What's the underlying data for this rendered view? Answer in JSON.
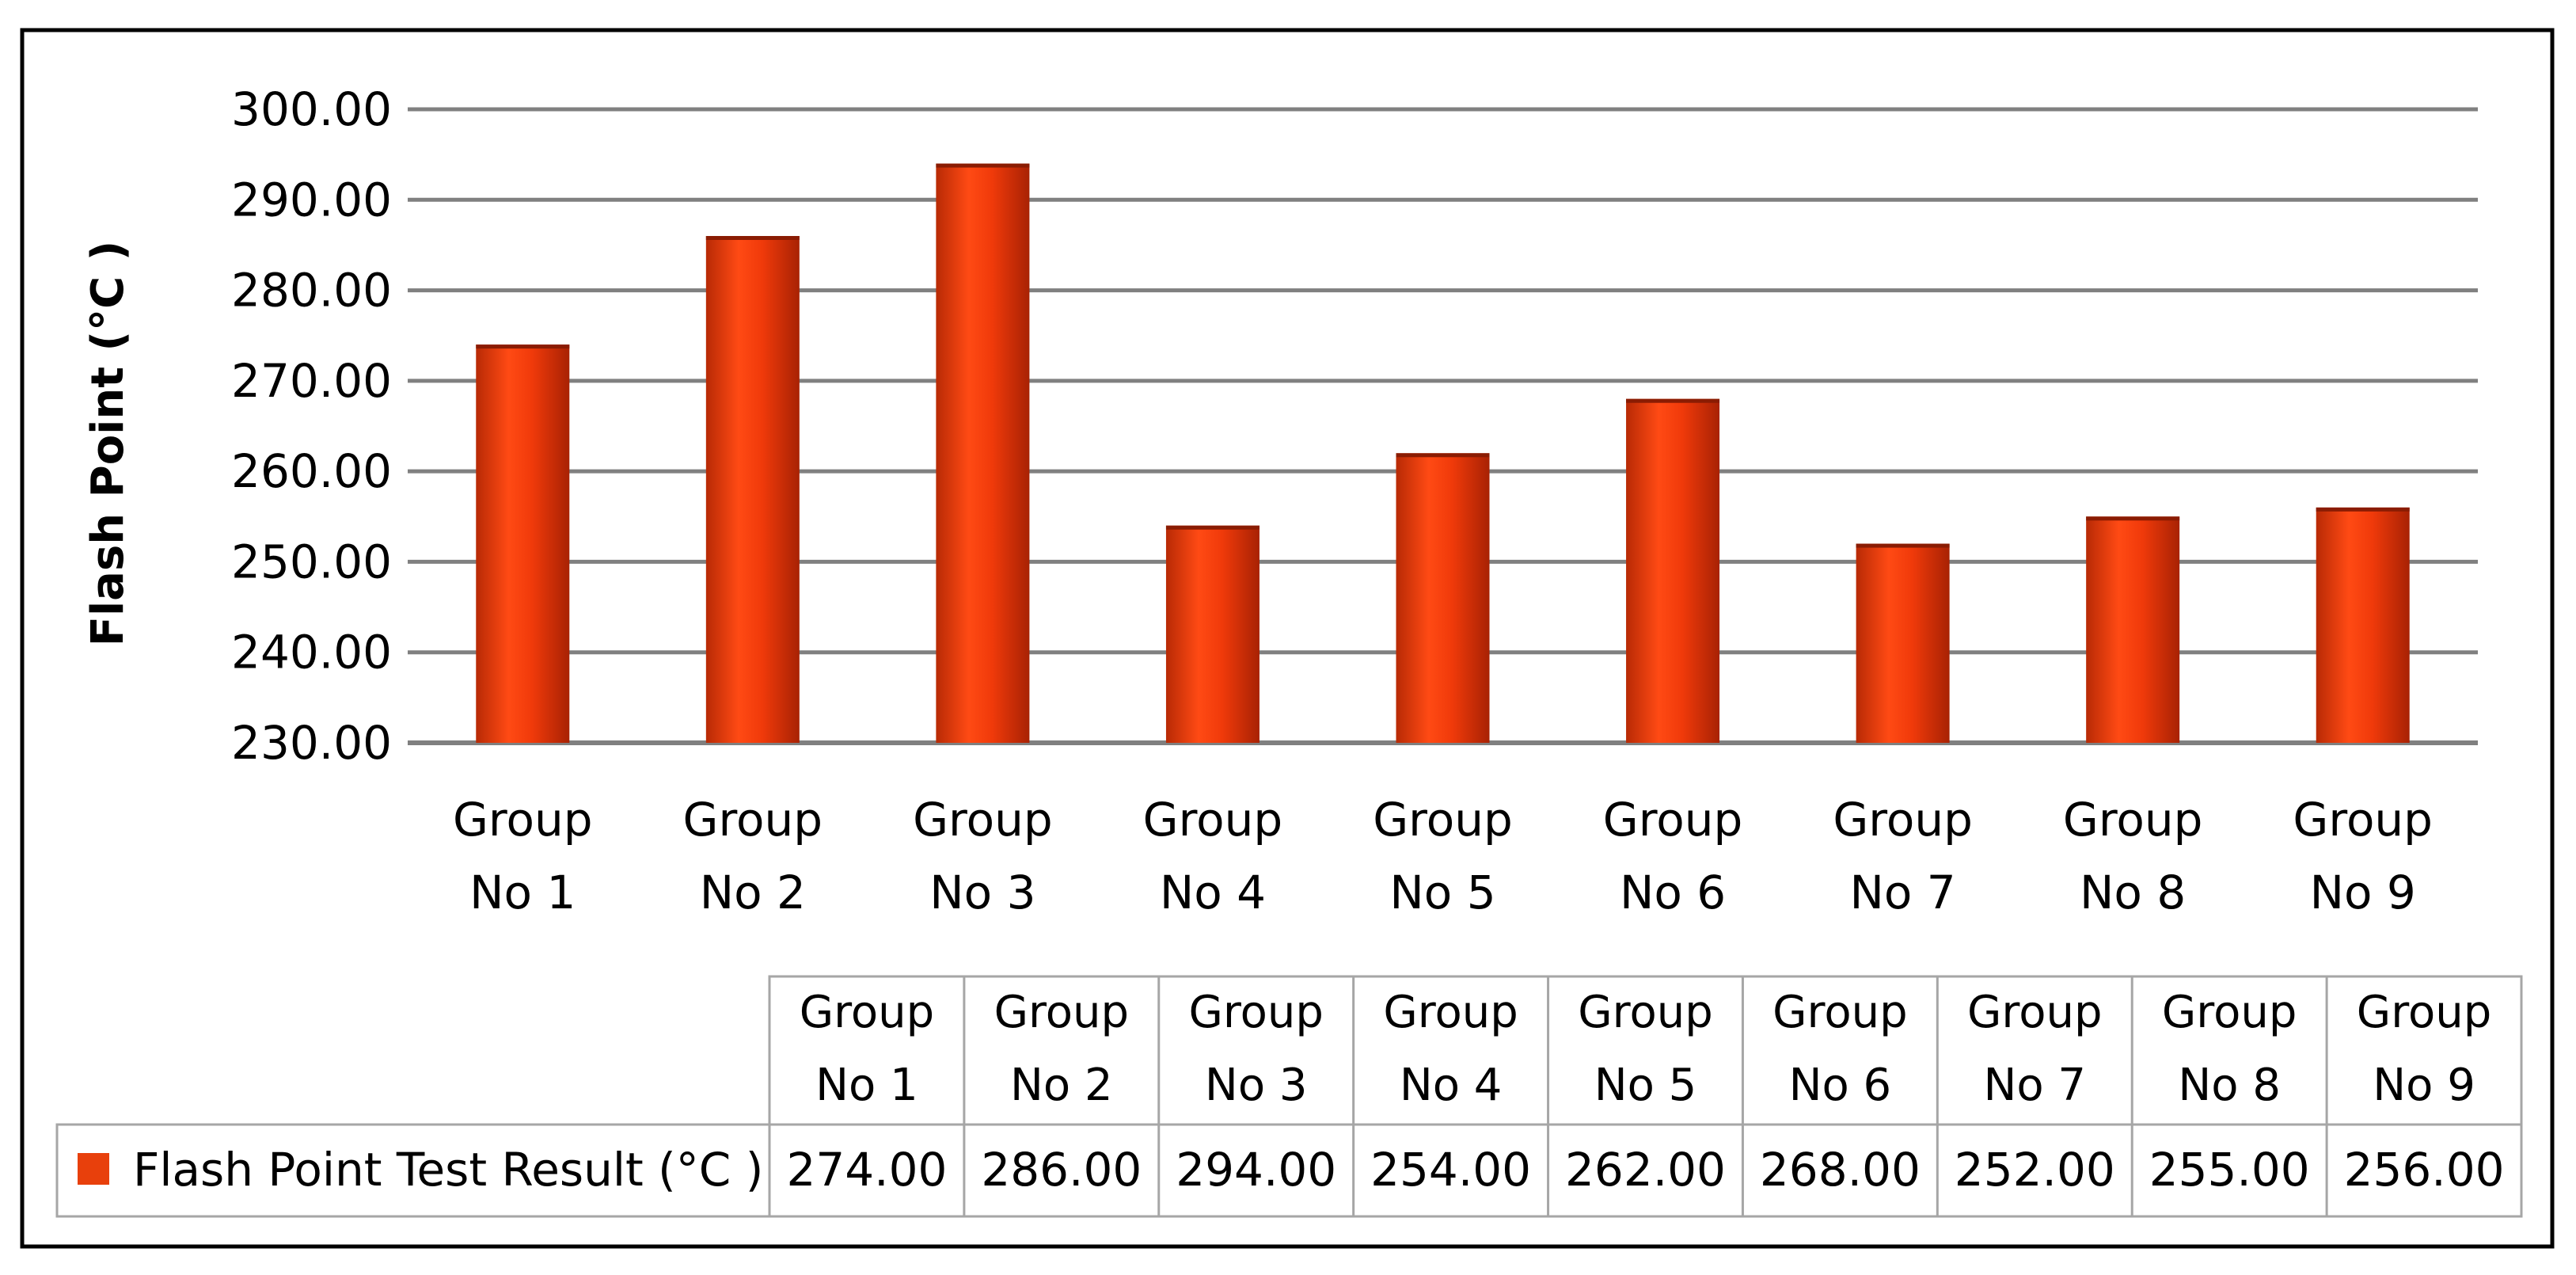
{
  "chart_data": {
    "type": "bar",
    "title": "",
    "xlabel": "",
    "ylabel": "Flash Point (°C )",
    "ylim": [
      230,
      300
    ],
    "y_ticks": [
      "230.00",
      "240.00",
      "250.00",
      "260.00",
      "270.00",
      "280.00",
      "290.00",
      "300.00"
    ],
    "grid": true,
    "categories": [
      [
        "Group",
        "No 1"
      ],
      [
        "Group",
        "No 2"
      ],
      [
        "Group",
        "No 3"
      ],
      [
        "Group",
        "No 4"
      ],
      [
        "Group",
        "No 5"
      ],
      [
        "Group",
        "No 6"
      ],
      [
        "Group",
        "No 7"
      ],
      [
        "Group",
        "No 8"
      ],
      [
        "Group",
        "No 9"
      ]
    ],
    "series": [
      {
        "name": "Flash Point Test Result (°C )",
        "color": "#e8400c",
        "values": [
          274,
          286,
          294,
          254,
          262,
          268,
          252,
          255,
          256
        ],
        "value_labels": [
          "274.00",
          "286.00",
          "294.00",
          "254.00",
          "262.00",
          "268.00",
          "252.00",
          "255.00",
          "256.00"
        ]
      }
    ],
    "legend": "data-table-below"
  }
}
